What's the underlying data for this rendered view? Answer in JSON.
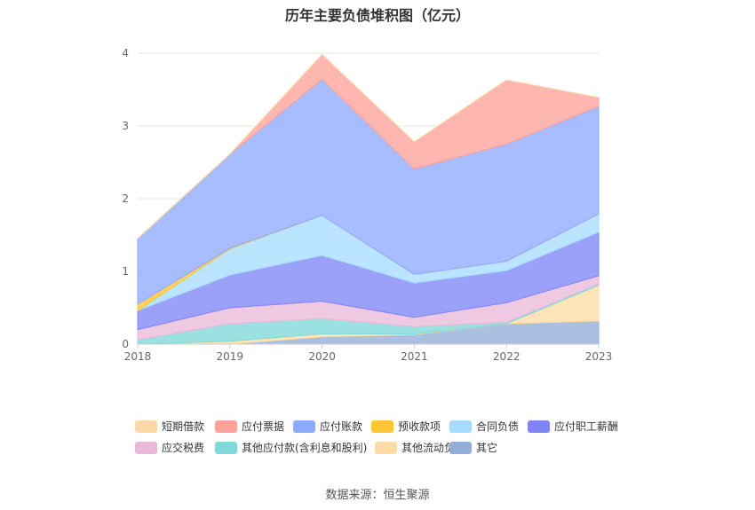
{
  "title": "历年主要负债堆积图（亿元）",
  "source": "数据来源：恒生聚源",
  "chart_data": {
    "type": "area",
    "stacked": true,
    "x": [
      "2018",
      "2019",
      "2020",
      "2021",
      "2022",
      "2023"
    ],
    "ylim": [
      0,
      4
    ],
    "yticks": [
      "0",
      "1",
      "2",
      "3",
      "4"
    ],
    "grid": true,
    "legend_position": "bottom",
    "series": [
      {
        "name": "短期借款",
        "color": "#fcd9a4",
        "values": [
          0.0,
          0.0,
          0.0,
          0.0,
          0.0,
          0.0
        ]
      },
      {
        "name": "应付票据",
        "color": "#fca29a",
        "values": [
          0.0,
          0.0,
          0.34,
          0.37,
          0.88,
          0.12
        ]
      },
      {
        "name": "应付账款",
        "color": "#8eaaff",
        "values": [
          0.9,
          1.29,
          1.87,
          1.45,
          1.61,
          1.48
        ]
      },
      {
        "name": "预收款项",
        "color": "#ffc533",
        "values": [
          0.09,
          0.01,
          0.0,
          0.0,
          0.0,
          0.0
        ]
      },
      {
        "name": "合同负债",
        "color": "#a6dcff",
        "values": [
          0.0,
          0.36,
          0.55,
          0.12,
          0.13,
          0.25
        ]
      },
      {
        "name": "应付职工薪酬",
        "color": "#7f85f7",
        "values": [
          0.26,
          0.45,
          0.63,
          0.47,
          0.44,
          0.6
        ]
      },
      {
        "name": "应交税费",
        "color": "#eab8d8",
        "values": [
          0.14,
          0.22,
          0.24,
          0.13,
          0.27,
          0.11
        ]
      },
      {
        "name": "其他应付款(含利息和股利)",
        "color": "#80d9d9",
        "values": [
          0.06,
          0.24,
          0.21,
          0.1,
          0.02,
          0.02
        ]
      },
      {
        "name": "其他流动负债",
        "color": "#ffdca6",
        "values": [
          0.0,
          0.04,
          0.04,
          0.01,
          0.0,
          0.49
        ]
      },
      {
        "name": "其它",
        "color": "#93aed8",
        "values": [
          0.0,
          0.0,
          0.1,
          0.13,
          0.28,
          0.32
        ]
      }
    ]
  }
}
